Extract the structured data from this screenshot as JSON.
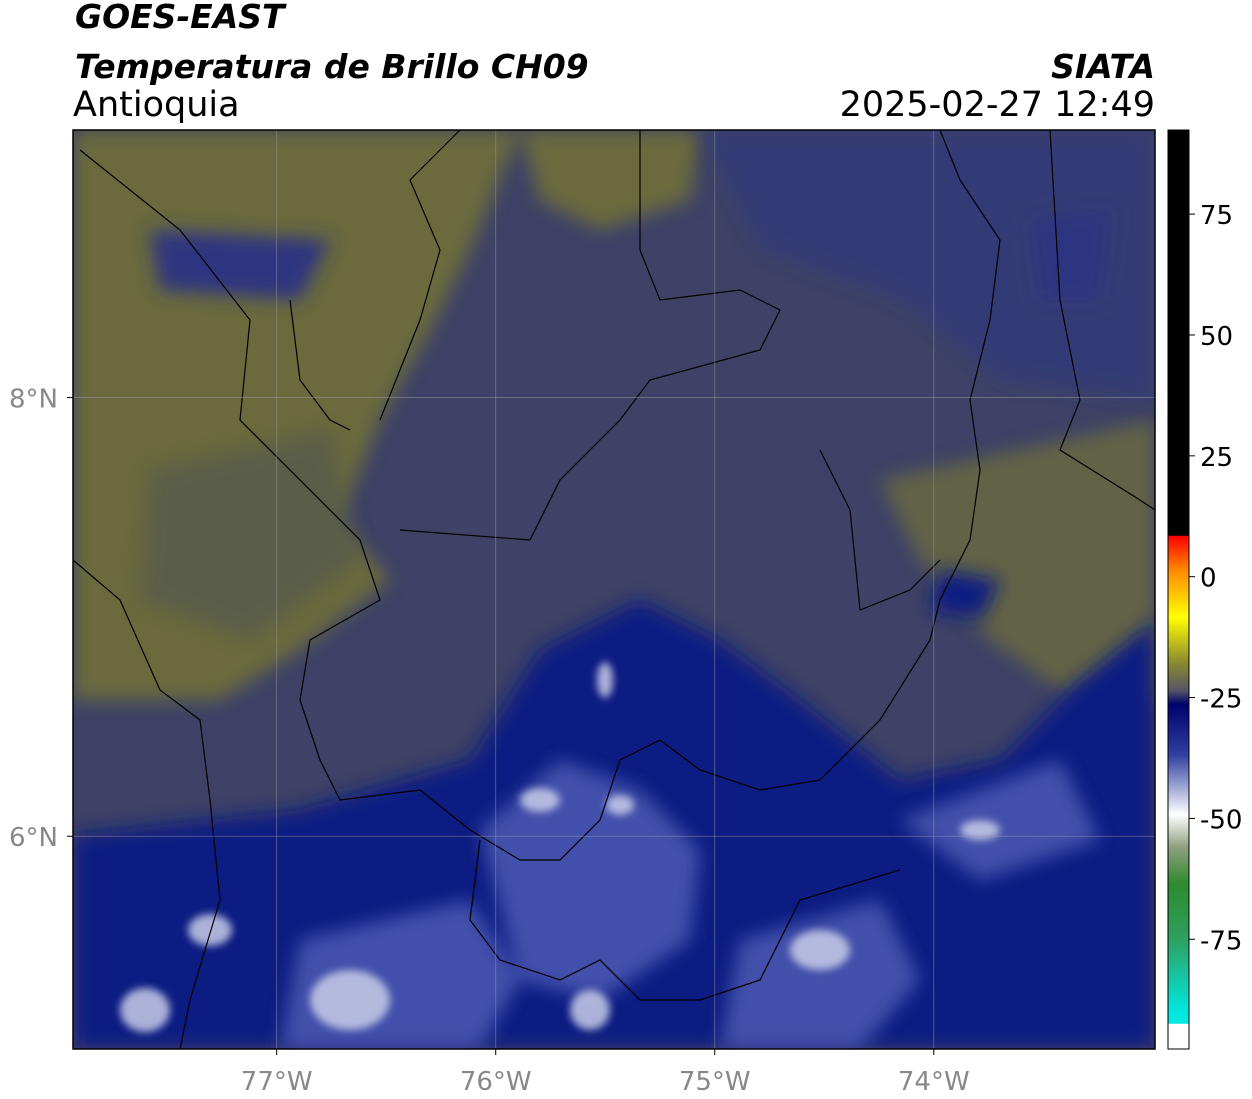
{
  "header": {
    "satellite": "GOES-EAST",
    "product": "Temperatura de Brillo CH09",
    "region": "Antioquia",
    "agency": "SIATA",
    "datetime": "2025-02-27 12:49"
  },
  "map": {
    "xlim": [
      -77.93,
      -72.99
    ],
    "ylim": [
      5.03,
      9.22
    ],
    "xticks": [
      {
        "value": -77,
        "label": "77°W"
      },
      {
        "value": -76,
        "label": "76°W"
      },
      {
        "value": -75,
        "label": "75°W"
      },
      {
        "value": -74,
        "label": "74°W"
      }
    ],
    "yticks": [
      {
        "value": 8,
        "label": "8°N"
      },
      {
        "value": 6,
        "label": "6°N"
      }
    ]
  },
  "colorbar": {
    "lim": [
      -97.7,
      92.4
    ],
    "ticks": [
      -75,
      -50,
      -25,
      0,
      25,
      50,
      75
    ]
  }
}
